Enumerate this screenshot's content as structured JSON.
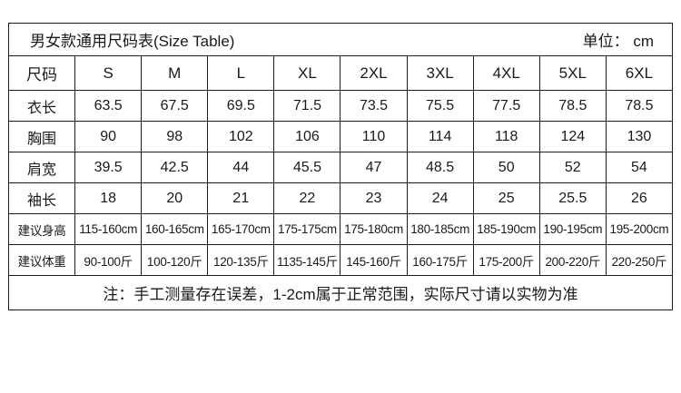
{
  "chart_data": {
    "type": "table",
    "title": "男女款通用尺码表(Size Table)",
    "unit_label": "单位： cm",
    "columns": [
      "尺码",
      "S",
      "M",
      "L",
      "XL",
      "2XL",
      "3XL",
      "4XL",
      "5XL",
      "6XL"
    ],
    "rows": [
      {
        "label": "衣长",
        "values": [
          "63.5",
          "67.5",
          "69.5",
          "71.5",
          "73.5",
          "75.5",
          "77.5",
          "78.5",
          "78.5"
        ]
      },
      {
        "label": "胸围",
        "values": [
          "90",
          "98",
          "102",
          "106",
          "110",
          "114",
          "118",
          "124",
          "130"
        ]
      },
      {
        "label": "肩宽",
        "values": [
          "39.5",
          "42.5",
          "44",
          "45.5",
          "47",
          "48.5",
          "50",
          "52",
          "54"
        ]
      },
      {
        "label": "袖长",
        "values": [
          "18",
          "20",
          "21",
          "22",
          "23",
          "24",
          "25",
          "25.5",
          "26"
        ]
      },
      {
        "label": "建议身高",
        "values": [
          "115-160cm",
          "160-165cm",
          "165-170cm",
          "175-175cm",
          "175-180cm",
          "180-185cm",
          "185-190cm",
          "190-195cm",
          "195-200cm"
        ]
      },
      {
        "label": "建议体重",
        "values": [
          "90-100斤",
          "100-120斤",
          "120-135斤",
          "1135-145斤",
          "145-160斤",
          "160-175斤",
          "175-200斤",
          "200-220斤",
          "220-250斤"
        ]
      }
    ],
    "note": "注：手工测量存在误差，1-2cm属于正常范围，实际尺寸请以实物为准"
  },
  "colors": {
    "border": "#1a1a1a",
    "text": "#1a1a1a",
    "background": "#ffffff"
  }
}
